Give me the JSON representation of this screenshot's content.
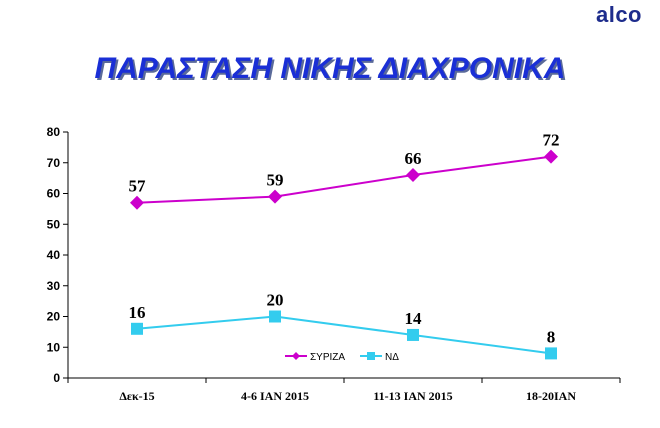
{
  "brand": {
    "logo_text": "alco"
  },
  "chart_data": {
    "type": "line",
    "title": "ΠΑΡΑΣΤΑΣΗ ΝΙΚΗΣ ΔΙΑΧΡΟΝΙΚΑ",
    "categories": [
      "Δεκ-15",
      "4-6 ΙΑΝ 2015",
      "11-13 ΙΑΝ 2015",
      "18-20ΙΑΝ"
    ],
    "ylim": [
      0,
      80
    ],
    "yticks": [
      "0",
      "10",
      "20",
      "30",
      "40",
      "50",
      "60",
      "70",
      "80"
    ],
    "grid": false,
    "legend_position": "bottom-center",
    "series": [
      {
        "name": "ΣΥΡΙΖΑ",
        "values": [
          57,
          59,
          66,
          72
        ],
        "labels": [
          "57",
          "59",
          "66",
          "72"
        ],
        "color": "#cc00cc",
        "marker": "diamond"
      },
      {
        "name": "ΝΔ",
        "values": [
          16,
          20,
          14,
          8
        ],
        "labels": [
          "16",
          "20",
          "14",
          "8"
        ],
        "color": "#33ccee",
        "marker": "square"
      }
    ]
  }
}
